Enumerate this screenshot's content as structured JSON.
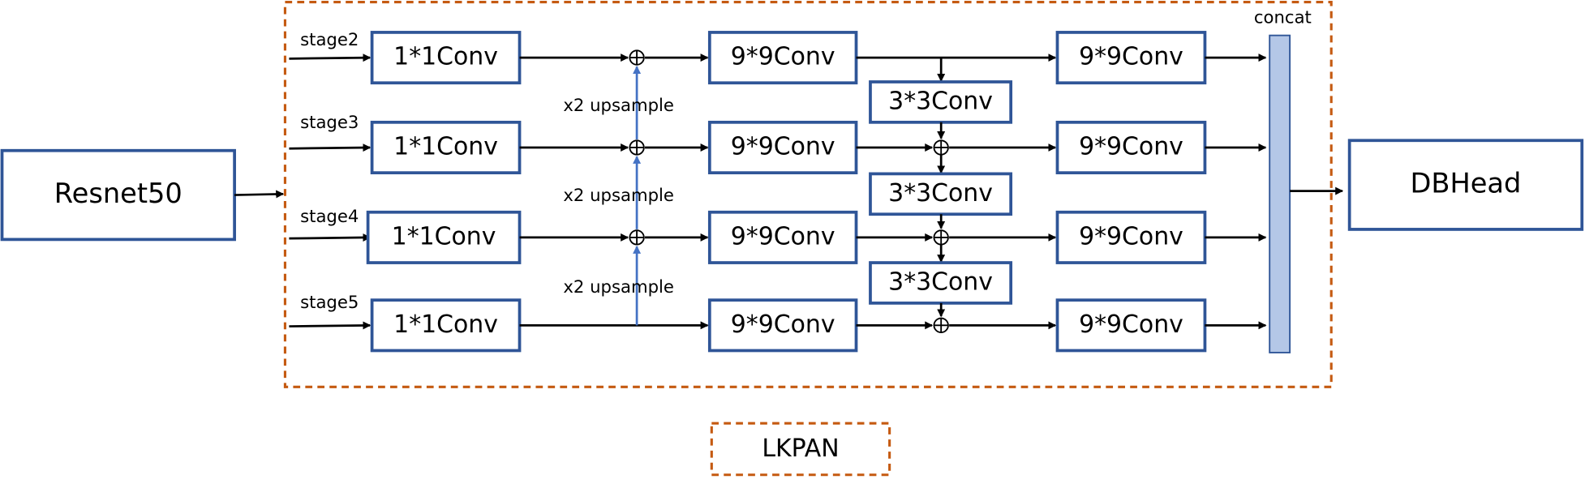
{
  "backbone": "Resnet50",
  "head": "DBHead",
  "module_label": "LKPAN",
  "concat_label": "concat",
  "stages": [
    "stage2",
    "stage3",
    "stage4",
    "stage5"
  ],
  "lateral_convs": [
    "1*1Conv",
    "1*1Conv",
    "1*1Conv",
    "1*1Conv"
  ],
  "upsample_labels": [
    "x2 upsample",
    "x2 upsample",
    "x2 upsample"
  ],
  "smooth_convs_1": [
    "9*9Conv",
    "9*9Conv",
    "9*9Conv",
    "9*9Conv"
  ],
  "downsample_convs": [
    "3*3Conv",
    "3*3Conv",
    "3*3Conv"
  ],
  "smooth_convs_2": [
    "9*9Conv",
    "9*9Conv",
    "9*9Conv",
    "9*9Conv"
  ]
}
